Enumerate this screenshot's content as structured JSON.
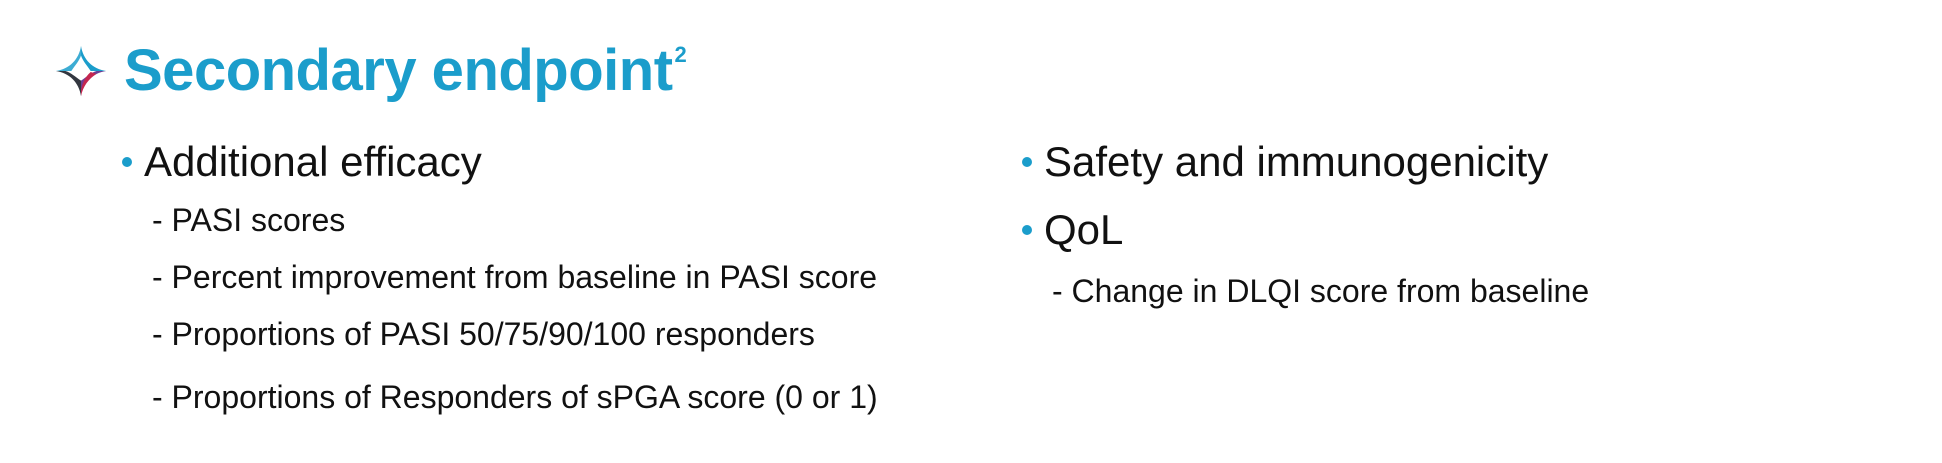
{
  "slide": {
    "title": "Secondary endpoint",
    "title_superscript": "2",
    "accent_color": "#1b9dcb",
    "logo_icon": "four-point-star-logo-icon"
  },
  "left_column": {
    "heading": "Additional efficacy",
    "items": [
      "- PASI scores",
      "- Percent improvement from baseline in PASI score",
      "- Proportions of PASI 50/75/90/100 responders",
      "- Proportions of Responders of sPGA score (0 or 1)"
    ]
  },
  "right_column": {
    "headings": [
      "Safety and immunogenicity",
      "QoL"
    ],
    "items": [
      "- Change in DLQI score from baseline"
    ]
  }
}
